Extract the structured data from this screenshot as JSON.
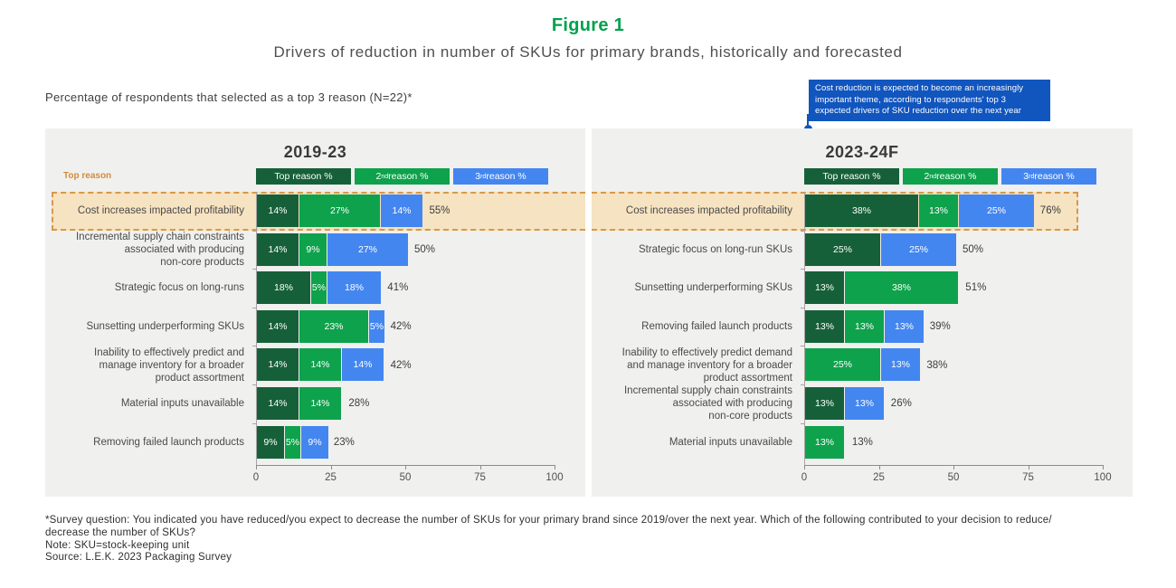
{
  "title": "Figure 1",
  "subtitle": "Drivers of reduction in number of SKUs for primary brands, historically and forecasted",
  "intro": "Percentage of respondents that selected as a top 3 reason (N=22)*",
  "callout": {
    "text": "Cost reduction is expected to become an increasingly important theme, according to respondents' top 3 expected drivers of SKU reduction over the next year",
    "color": "#1155BE"
  },
  "highlight_label": "Top reason",
  "colors": {
    "top": "#166039",
    "second": "#0EA24C",
    "third": "#4486F0",
    "panel_bg": "#F0F0EE",
    "band_fill": "#F6E3C1",
    "band_border": "#D9984A",
    "accent_green": "#00A14B"
  },
  "legend": [
    {
      "series": "top",
      "pre": "Top reason %",
      "sup": "",
      "post": ""
    },
    {
      "series": "second",
      "pre": "2",
      "sup": "nd",
      "post": " reason %"
    },
    {
      "series": "third",
      "pre": "3",
      "sup": "rd",
      "post": " reason %"
    }
  ],
  "chart_data": [
    {
      "type": "bar",
      "title": "2019-23",
      "orientation": "horizontal-stacked",
      "series_names": [
        "Top reason %",
        "2nd reason %",
        "3rd reason %"
      ],
      "xlim": [
        0,
        100
      ],
      "xticks": [
        0,
        25,
        50,
        75,
        100
      ],
      "rows": [
        {
          "label": "Cost increases impacted profitability",
          "highlight": true,
          "total": 55,
          "total_label": "55%",
          "segments": [
            {
              "series": "top",
              "pct": 14,
              "label": "14%"
            },
            {
              "series": "second",
              "pct": 27,
              "label": "27%"
            },
            {
              "series": "third",
              "pct": 14,
              "label": "14%"
            }
          ]
        },
        {
          "label": "Incremental supply chain constraints\nassociated with producing\nnon-core products",
          "highlight": false,
          "total": 50,
          "total_label": "50%",
          "segments": [
            {
              "series": "top",
              "pct": 14,
              "label": "14%"
            },
            {
              "series": "second",
              "pct": 9,
              "label": "9%"
            },
            {
              "series": "third",
              "pct": 27,
              "label": "27%"
            }
          ]
        },
        {
          "label": "Strategic focus on long-runs",
          "highlight": false,
          "total": 41,
          "total_label": "41%",
          "segments": [
            {
              "series": "top",
              "pct": 18,
              "label": "18%"
            },
            {
              "series": "second",
              "pct": 5,
              "label": "5%"
            },
            {
              "series": "third",
              "pct": 18,
              "label": "18%"
            }
          ]
        },
        {
          "label": "Sunsetting underperforming SKUs",
          "highlight": false,
          "total": 42,
          "total_label": "42%",
          "segments": [
            {
              "series": "top",
              "pct": 14,
              "label": "14%"
            },
            {
              "series": "second",
              "pct": 23,
              "label": "23%"
            },
            {
              "series": "third",
              "pct": 5,
              "label": "5%"
            }
          ]
        },
        {
          "label": "Inability to effectively predict and\nmanage inventory for a broader\nproduct assortment",
          "highlight": false,
          "total": 42,
          "total_label": "42%",
          "segments": [
            {
              "series": "top",
              "pct": 14,
              "label": "14%"
            },
            {
              "series": "second",
              "pct": 14,
              "label": "14%"
            },
            {
              "series": "third",
              "pct": 14,
              "label": "14%"
            }
          ]
        },
        {
          "label": "Material inputs unavailable",
          "highlight": false,
          "total": 28,
          "total_label": "28%",
          "segments": [
            {
              "series": "top",
              "pct": 14,
              "label": "14%"
            },
            {
              "series": "second",
              "pct": 14,
              "label": "14%"
            }
          ]
        },
        {
          "label": "Removing failed launch products",
          "highlight": false,
          "total": 23,
          "total_label": "23%",
          "segments": [
            {
              "series": "top",
              "pct": 9,
              "label": "9%"
            },
            {
              "series": "second",
              "pct": 5,
              "label": "5%"
            },
            {
              "series": "third",
              "pct": 9,
              "label": "9%"
            }
          ]
        }
      ]
    },
    {
      "type": "bar",
      "title": "2023-24F",
      "orientation": "horizontal-stacked",
      "series_names": [
        "Top reason %",
        "2nd reason %",
        "3rd reason %"
      ],
      "xlim": [
        0,
        100
      ],
      "xticks": [
        0,
        25,
        50,
        75,
        100
      ],
      "rows": [
        {
          "label": "Cost increases impacted profitability",
          "highlight": true,
          "total": 76,
          "total_label": "76%",
          "segments": [
            {
              "series": "top",
              "pct": 38,
              "label": "38%"
            },
            {
              "series": "second",
              "pct": 13,
              "label": "13%"
            },
            {
              "series": "third",
              "pct": 25,
              "label": "25%"
            }
          ]
        },
        {
          "label": "Strategic focus on long-run SKUs",
          "highlight": false,
          "total": 50,
          "total_label": "50%",
          "segments": [
            {
              "series": "top",
              "pct": 25,
              "label": "25%"
            },
            {
              "series": "third",
              "pct": 25,
              "label": "25%"
            }
          ]
        },
        {
          "label": "Sunsetting underperforming SKUs",
          "highlight": false,
          "total": 51,
          "total_label": "51%",
          "segments": [
            {
              "series": "top",
              "pct": 13,
              "label": "13%"
            },
            {
              "series": "second",
              "pct": 38,
              "label": "38%"
            }
          ]
        },
        {
          "label": "Removing failed launch products",
          "highlight": false,
          "total": 39,
          "total_label": "39%",
          "segments": [
            {
              "series": "top",
              "pct": 13,
              "label": "13%"
            },
            {
              "series": "second",
              "pct": 13,
              "label": "13%"
            },
            {
              "series": "third",
              "pct": 13,
              "label": "13%"
            }
          ]
        },
        {
          "label": "Inability to effectively predict demand\nand manage inventory for a broader\nproduct assortment",
          "highlight": false,
          "total": 38,
          "total_label": "38%",
          "segments": [
            {
              "series": "second",
              "pct": 25,
              "label": "25%"
            },
            {
              "series": "third",
              "pct": 13,
              "label": "13%"
            }
          ]
        },
        {
          "label": "Incremental supply chain constraints\nassociated with producing\nnon-core products",
          "highlight": false,
          "total": 26,
          "total_label": "26%",
          "segments": [
            {
              "series": "top",
              "pct": 13,
              "label": "13%"
            },
            {
              "series": "third",
              "pct": 13,
              "label": "13%"
            }
          ]
        },
        {
          "label": "Material inputs unavailable",
          "highlight": false,
          "total": 13,
          "total_label": "13%",
          "segments": [
            {
              "series": "second",
              "pct": 13,
              "label": "13%"
            }
          ]
        }
      ]
    }
  ],
  "footnotes": [
    "*Survey question: You indicated you have reduced/you expect to decrease the number of SKUs for your primary brand since 2019/over the next year. Which of the following contributed to your decision to reduce/",
    "decrease the number of SKUs?",
    "Note: SKU=stock-keeping unit",
    "Source: L.E.K. 2023 Packaging Survey"
  ]
}
